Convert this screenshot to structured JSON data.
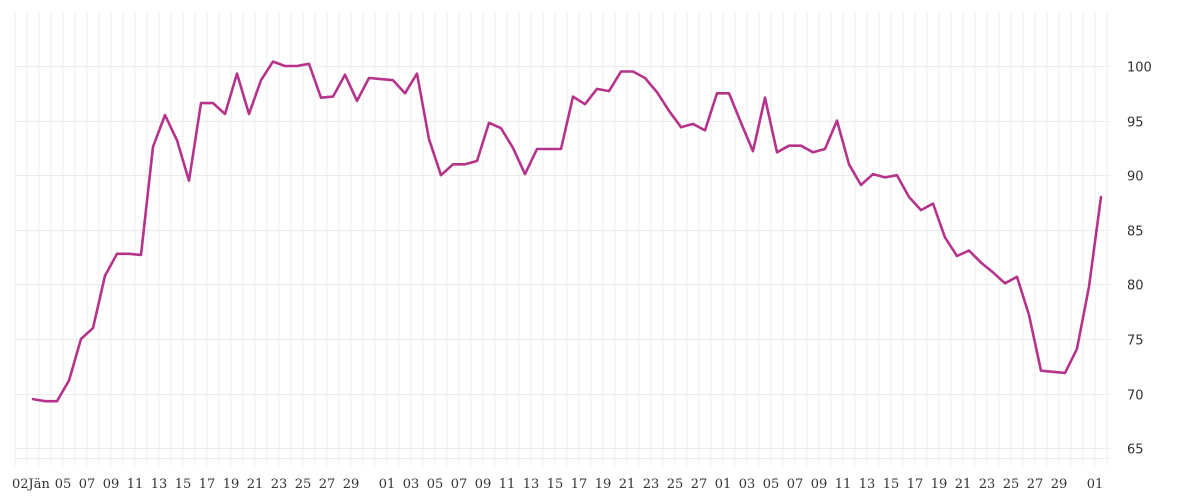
{
  "chart_data": {
    "type": "line",
    "title": "",
    "xlabel": "",
    "ylabel": "",
    "ylim": [
      64,
      104
    ],
    "grid": true,
    "legend": "none",
    "y_axis_position": "right",
    "y_ticks": [
      65,
      70,
      75,
      80,
      85,
      90,
      95,
      100
    ],
    "x_tick_labels": [
      {
        "day_index": 0,
        "label": "02Jän"
      },
      {
        "day_index": 3,
        "label": "05"
      },
      {
        "day_index": 5,
        "label": "07"
      },
      {
        "day_index": 7,
        "label": "09"
      },
      {
        "day_index": 9,
        "label": "11"
      },
      {
        "day_index": 11,
        "label": "13"
      },
      {
        "day_index": 13,
        "label": "15"
      },
      {
        "day_index": 15,
        "label": "17"
      },
      {
        "day_index": 17,
        "label": "19"
      },
      {
        "day_index": 19,
        "label": "21"
      },
      {
        "day_index": 21,
        "label": "23"
      },
      {
        "day_index": 23,
        "label": "25"
      },
      {
        "day_index": 25,
        "label": "27"
      },
      {
        "day_index": 27,
        "label": "29"
      },
      {
        "day_index": 30,
        "label": "01"
      },
      {
        "day_index": 32,
        "label": "03"
      },
      {
        "day_index": 34,
        "label": "05"
      },
      {
        "day_index": 36,
        "label": "07"
      },
      {
        "day_index": 38,
        "label": "09"
      },
      {
        "day_index": 40,
        "label": "11"
      },
      {
        "day_index": 42,
        "label": "13"
      },
      {
        "day_index": 44,
        "label": "15"
      },
      {
        "day_index": 46,
        "label": "17"
      },
      {
        "day_index": 48,
        "label": "19"
      },
      {
        "day_index": 50,
        "label": "21"
      },
      {
        "day_index": 52,
        "label": "23"
      },
      {
        "day_index": 54,
        "label": "25"
      },
      {
        "day_index": 56,
        "label": "27"
      },
      {
        "day_index": 58,
        "label": "01"
      },
      {
        "day_index": 60,
        "label": "03"
      },
      {
        "day_index": 62,
        "label": "05"
      },
      {
        "day_index": 64,
        "label": "07"
      },
      {
        "day_index": 66,
        "label": "09"
      },
      {
        "day_index": 68,
        "label": "11"
      },
      {
        "day_index": 70,
        "label": "13"
      },
      {
        "day_index": 72,
        "label": "15"
      },
      {
        "day_index": 74,
        "label": "17"
      },
      {
        "day_index": 76,
        "label": "19"
      },
      {
        "day_index": 78,
        "label": "21"
      },
      {
        "day_index": 80,
        "label": "23"
      },
      {
        "day_index": 82,
        "label": "25"
      },
      {
        "day_index": 84,
        "label": "27"
      },
      {
        "day_index": 86,
        "label": "29"
      },
      {
        "day_index": 89,
        "label": "01"
      }
    ],
    "x": [
      "02.01",
      "03.01",
      "04.01",
      "05.01",
      "06.01",
      "07.01",
      "08.01",
      "09.01",
      "10.01",
      "11.01",
      "12.01",
      "13.01",
      "14.01",
      "15.01",
      "16.01",
      "17.01",
      "18.01",
      "19.01",
      "20.01",
      "21.01",
      "22.01",
      "23.01",
      "24.01",
      "25.01",
      "26.01",
      "27.01",
      "28.01",
      "29.01",
      "30.01",
      "31.01",
      "01.02",
      "02.02",
      "03.02",
      "04.02",
      "05.02",
      "06.02",
      "07.02",
      "08.02",
      "09.02",
      "10.02",
      "11.02",
      "12.02",
      "13.02",
      "14.02",
      "15.02",
      "16.02",
      "17.02",
      "18.02",
      "19.02",
      "20.02",
      "21.02",
      "22.02",
      "23.02",
      "24.02",
      "25.02",
      "26.02",
      "27.02",
      "28.02",
      "01.03",
      "02.03",
      "03.03",
      "04.03",
      "05.03",
      "06.03",
      "07.03",
      "08.03",
      "09.03",
      "10.03",
      "11.03",
      "12.03",
      "13.03",
      "14.03",
      "15.03",
      "16.03",
      "17.03",
      "18.03",
      "19.03",
      "20.03",
      "21.03",
      "22.03",
      "23.03",
      "24.03",
      "25.03",
      "26.03",
      "27.03",
      "28.03",
      "29.03",
      "30.03",
      "31.03",
      "01.04"
    ],
    "series": [
      {
        "name": "value",
        "color": "#b5338a",
        "values": [
          69.5,
          69.3,
          69.3,
          71.2,
          75.0,
          76.0,
          80.8,
          82.8,
          82.8,
          82.7,
          92.6,
          95.5,
          93.2,
          89.5,
          96.6,
          96.6,
          95.6,
          99.3,
          95.6,
          98.7,
          100.4,
          100.0,
          100.0,
          100.2,
          97.1,
          97.2,
          99.2,
          96.8,
          98.9,
          98.8,
          98.7,
          97.5,
          99.3,
          93.3,
          90.0,
          91.0,
          91.0,
          91.3,
          94.8,
          94.3,
          92.5,
          90.1,
          92.4,
          92.4,
          92.4,
          97.2,
          96.5,
          97.9,
          97.7,
          99.5,
          99.5,
          98.9,
          97.6,
          95.9,
          94.4,
          94.7,
          94.1,
          97.5,
          97.5,
          94.8,
          92.2,
          97.1,
          92.1,
          92.7,
          92.7,
          92.1,
          92.4,
          95.0,
          91.0,
          89.1,
          90.1,
          89.8,
          90.0,
          88.0,
          86.8,
          87.4,
          84.3,
          82.6,
          83.1,
          82.0,
          81.1,
          80.1,
          80.7,
          77.2,
          72.1,
          72.0,
          71.9,
          74.1,
          79.8,
          88.0
        ]
      }
    ]
  },
  "style": {
    "grid_color": "#ececec",
    "text_color": "#333333",
    "line_color": "#b5338a"
  }
}
